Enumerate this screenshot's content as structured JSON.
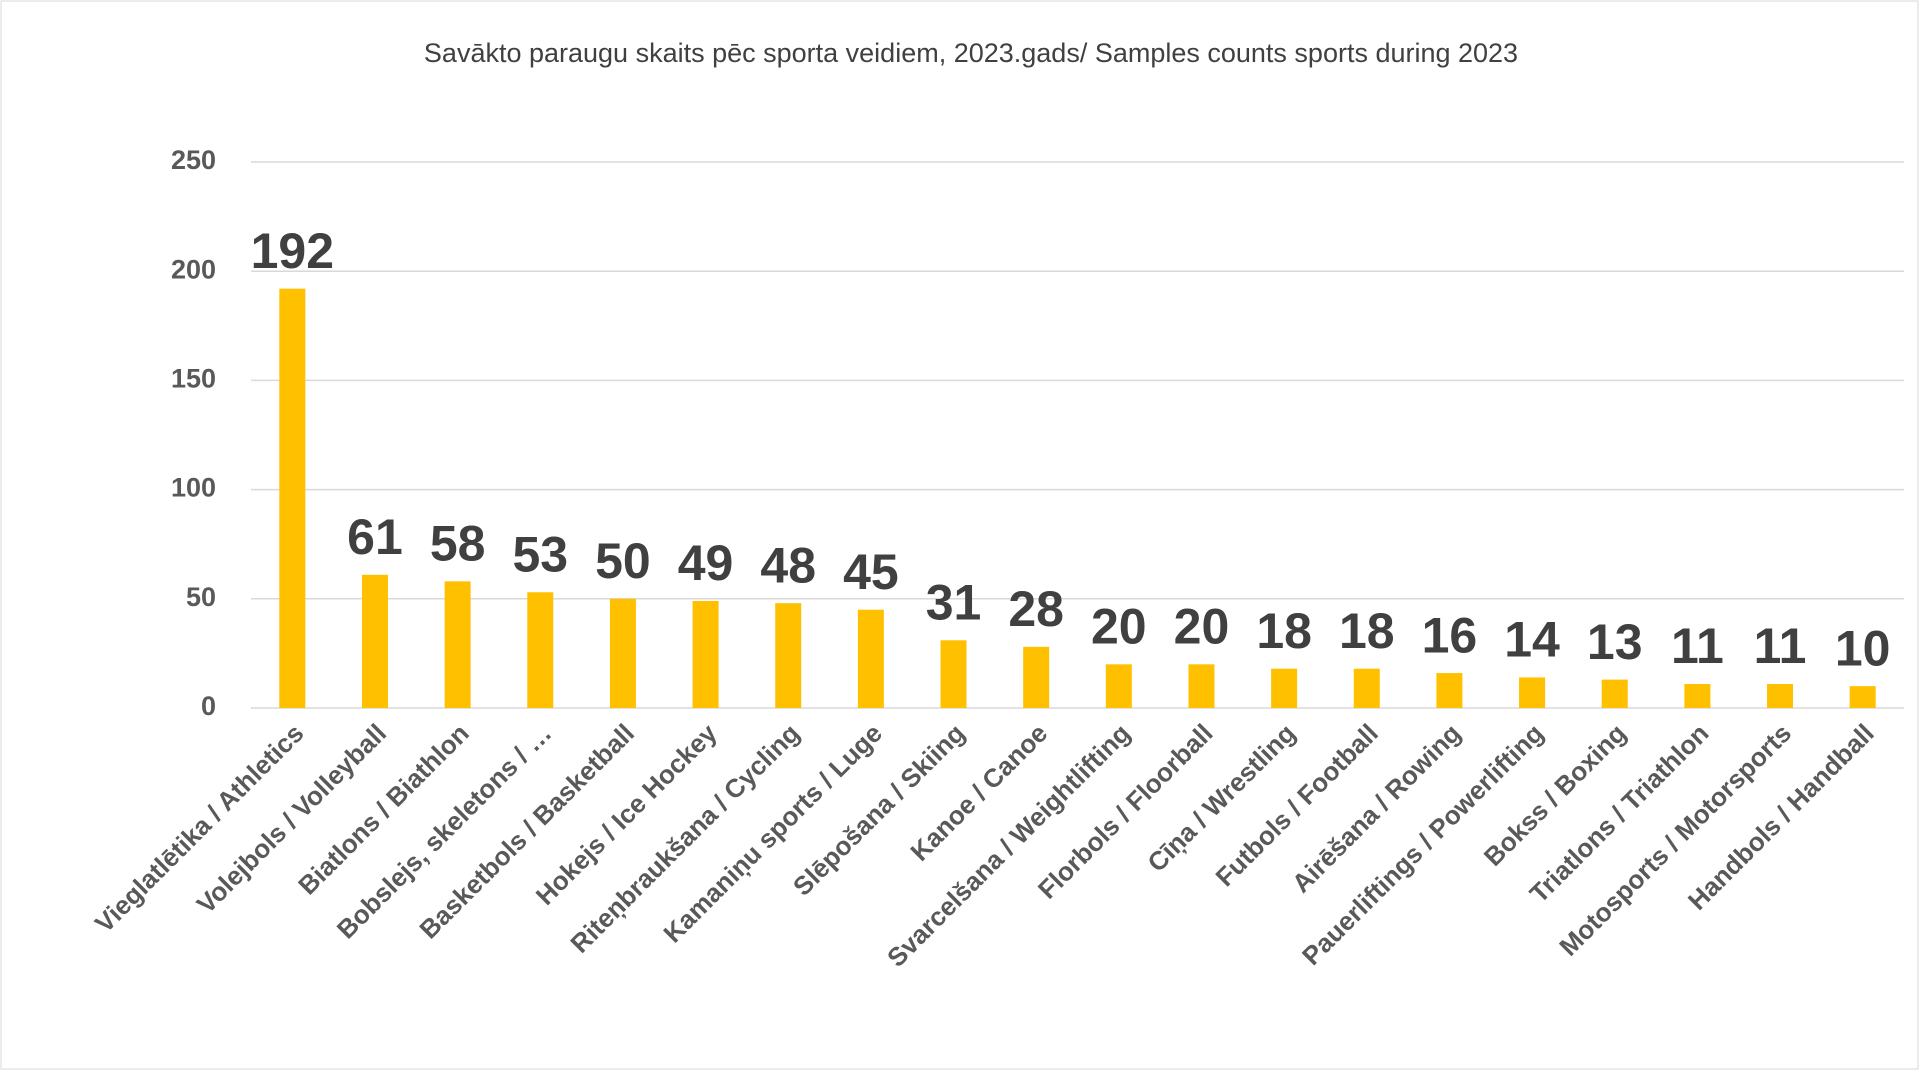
{
  "chart_data": {
    "type": "bar",
    "title": "Savākto paraugu skaits pēc sporta veidiem, 2023.gads/ Samples counts sports during 2023",
    "categories": [
      "Vieglatlētika / Athletics",
      "Volejbols / Volleyball",
      "Biatlons / Biathlon",
      "Bobslejs, skeletons / …",
      "Basketbols / Basketball",
      "Hokejs / Ice Hockey",
      "Riteņbraukšana / Cycling",
      "Kamaniņu sports / Luge",
      "Slēpošana / Skiing",
      "Kanoe / Canoe",
      "Svarcelšana / Weightlifting",
      "Florbols / Floorball",
      "Cīņa / Wrestling",
      "Futbols / Football",
      "Airēšana / Rowing",
      "Pauerliftings / Powerlifting",
      "Bokss / Boxing",
      "Triatlons / Triathlon",
      "Motosports / Motorsports",
      "Handbols / Handball"
    ],
    "values": [
      192,
      61,
      58,
      53,
      50,
      49,
      48,
      45,
      31,
      28,
      20,
      20,
      18,
      18,
      16,
      14,
      13,
      11,
      11,
      10
    ],
    "color": "#ffc000",
    "ylim": [
      0,
      250
    ],
    "yticks": [
      0,
      50,
      100,
      150,
      200,
      250
    ],
    "grid": true
  }
}
